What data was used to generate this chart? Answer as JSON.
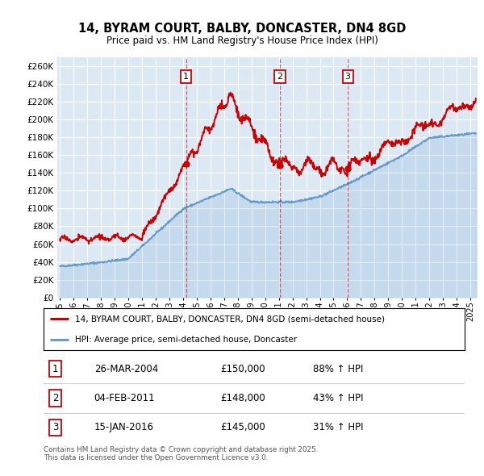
{
  "title": "14, BYRAM COURT, BALBY, DONCASTER, DN4 8GD",
  "subtitle": "Price paid vs. HM Land Registry's House Price Index (HPI)",
  "plot_bg_color": "#dce9f5",
  "ylim": [
    0,
    270000
  ],
  "yticks": [
    0,
    20000,
    40000,
    60000,
    80000,
    100000,
    120000,
    140000,
    160000,
    180000,
    200000,
    220000,
    240000,
    260000
  ],
  "xlim_start": 1994.8,
  "xlim_end": 2025.5,
  "sales": [
    {
      "num": 1,
      "date": "26-MAR-2004",
      "year": 2004.23,
      "price": 150000,
      "pct": "88%",
      "dir": "↑"
    },
    {
      "num": 2,
      "date": "04-FEB-2011",
      "year": 2011.09,
      "price": 148000,
      "pct": "43%",
      "dir": "↑"
    },
    {
      "num": 3,
      "date": "15-JAN-2016",
      "year": 2016.04,
      "price": 145000,
      "pct": "31%",
      "dir": "↑"
    }
  ],
  "legend_label_red": "14, BYRAM COURT, BALBY, DONCASTER, DN4 8GD (semi-detached house)",
  "legend_label_blue": "HPI: Average price, semi-detached house, Doncaster",
  "footer": "Contains HM Land Registry data © Crown copyright and database right 2025.\nThis data is licensed under the Open Government Licence v3.0.",
  "red_color": "#cc0000",
  "blue_color": "#6699cc",
  "blue_fill_color": "#6699cc",
  "marker_box_color": "#cc0000",
  "grid_color": "#ffffff"
}
